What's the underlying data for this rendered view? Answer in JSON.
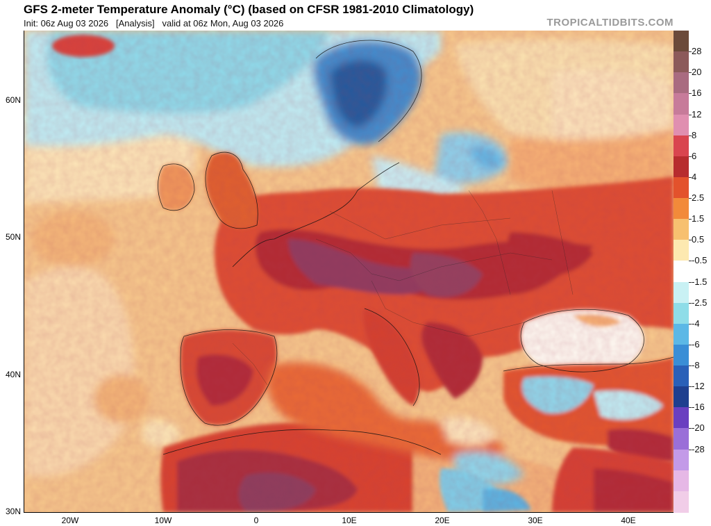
{
  "header": {
    "title": "GFS 2-meter Temperature Anomaly (°C) (based on CFSR 1981-2010 Climatology)",
    "init_label": "Init: 06z Aug 03 2026",
    "run_type": "[Analysis]",
    "valid_label": "valid at 06z Mon, Aug 03 2026",
    "brand": "TROPICALTIDBITS.COM"
  },
  "axes": {
    "latitude_labels": [
      "60N",
      "50N",
      "40N",
      "30N"
    ],
    "longitude_labels": [
      "20W",
      "10W",
      "0",
      "10E",
      "20E",
      "30E",
      "40E"
    ]
  },
  "colorbar": {
    "labels": [
      "28",
      "20",
      "16",
      "12",
      "8",
      "6",
      "4",
      "2.5",
      "1.5",
      "0.5",
      "-0.5",
      "-1.5",
      "-2.5",
      "-4",
      "-6",
      "-8",
      "-12",
      "-16",
      "-20",
      "-28"
    ],
    "colors": [
      "#6b4a3a",
      "#8c5a5a",
      "#a96b80",
      "#c77b9a",
      "#e08fb0",
      "#d9454f",
      "#b72c2e",
      "#e3522c",
      "#f28a3a",
      "#f7c070",
      "#fde9b0",
      "#ffffff",
      "#c9f1f4",
      "#8fdde8",
      "#5cb8e6",
      "#3a8ed6",
      "#2a60b8",
      "#1f3f8f",
      "#6a3fc0",
      "#9a6fd8",
      "#c39ae8",
      "#e6b8e6",
      "#f1cde8"
    ]
  },
  "map": {
    "colors": {
      "ocean_warm": "#f6c890",
      "ocean_neutral": "#fbe8c0",
      "land_hot": "#d8422e",
      "land_very_hot": "#b12a35",
      "land_extreme": "#8e3b5a",
      "cool_light": "#bfeef5",
      "cool_mid": "#7fd2ea",
      "cool_deep": "#2f6fb2",
      "neutral_white": "#ffffff"
    }
  }
}
